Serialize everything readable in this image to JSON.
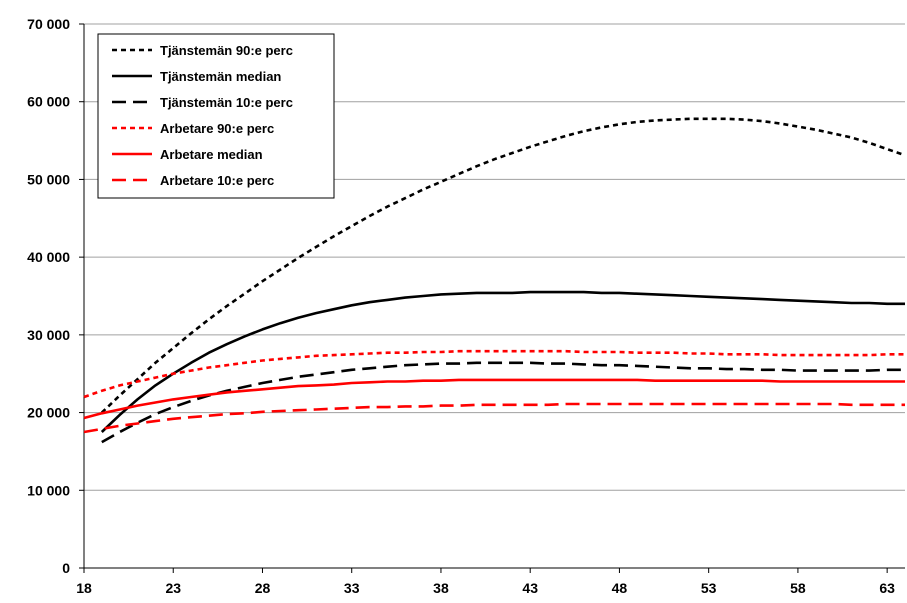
{
  "chart_data": {
    "type": "line",
    "x": [
      18,
      19,
      20,
      21,
      22,
      23,
      24,
      25,
      26,
      27,
      28,
      29,
      30,
      31,
      32,
      33,
      34,
      35,
      36,
      37,
      38,
      39,
      40,
      41,
      42,
      43,
      44,
      45,
      46,
      47,
      48,
      49,
      50,
      51,
      52,
      53,
      54,
      55,
      56,
      57,
      58,
      59,
      60,
      61,
      62,
      63,
      64
    ],
    "xticks": [
      18,
      23,
      28,
      33,
      38,
      43,
      48,
      53,
      58,
      63
    ],
    "xlim": [
      18,
      64
    ],
    "yticks": [
      0,
      10000,
      20000,
      30000,
      40000,
      50000,
      60000,
      70000
    ],
    "ytick_labels": [
      "0",
      "10 000",
      "20 000",
      "30 000",
      "40 000",
      "50 000",
      "60 000",
      "70 000"
    ],
    "ylim": [
      0,
      70000
    ],
    "grid": "horizontal",
    "legend_position": "top-left",
    "series": [
      {
        "name": "Tjänstemän 90:e perc",
        "color": "#000000",
        "dash": "short",
        "values": [
          null,
          20000,
          22200,
          24300,
          26400,
          28300,
          30200,
          32000,
          33700,
          35300,
          36900,
          38400,
          39900,
          41300,
          42700,
          44000,
          45300,
          46500,
          47600,
          48700,
          49700,
          50700,
          51700,
          52600,
          53400,
          54200,
          54900,
          55600,
          56200,
          56700,
          57100,
          57400,
          57600,
          57700,
          57800,
          57800,
          57800,
          57700,
          57500,
          57200,
          56800,
          56400,
          55900,
          55400,
          54700,
          53900,
          53100
        ]
      },
      {
        "name": "Tjänstemän median",
        "color": "#000000",
        "dash": "solid",
        "values": [
          null,
          17500,
          19700,
          21700,
          23500,
          25000,
          26400,
          27700,
          28800,
          29800,
          30700,
          31500,
          32200,
          32800,
          33300,
          33800,
          34200,
          34500,
          34800,
          35000,
          35200,
          35300,
          35400,
          35400,
          35400,
          35500,
          35500,
          35500,
          35500,
          35400,
          35400,
          35300,
          35200,
          35100,
          35000,
          34900,
          34800,
          34700,
          34600,
          34500,
          34400,
          34300,
          34200,
          34100,
          34100,
          34000,
          34000
        ]
      },
      {
        "name": "Tjänstemän 10:e perc",
        "color": "#000000",
        "dash": "long",
        "values": [
          null,
          16200,
          17500,
          18700,
          19800,
          20700,
          21500,
          22200,
          22800,
          23300,
          23800,
          24200,
          24600,
          24900,
          25200,
          25500,
          25700,
          25900,
          26100,
          26200,
          26300,
          26300,
          26400,
          26400,
          26400,
          26400,
          26300,
          26300,
          26200,
          26100,
          26100,
          26000,
          25900,
          25800,
          25700,
          25700,
          25600,
          25600,
          25500,
          25500,
          25400,
          25400,
          25400,
          25400,
          25400,
          25500,
          25500
        ]
      },
      {
        "name": "Arbetare 90:e perc",
        "color": "#ff0000",
        "dash": "short",
        "values": [
          22000,
          22800,
          23500,
          24000,
          24500,
          25000,
          25400,
          25800,
          26100,
          26400,
          26700,
          26900,
          27100,
          27300,
          27400,
          27500,
          27600,
          27700,
          27700,
          27800,
          27800,
          27900,
          27900,
          27900,
          27900,
          27900,
          27900,
          27900,
          27800,
          27800,
          27800,
          27700,
          27700,
          27700,
          27600,
          27600,
          27500,
          27500,
          27500,
          27400,
          27400,
          27400,
          27400,
          27400,
          27400,
          27500,
          27500
        ]
      },
      {
        "name": "Arbetare median",
        "color": "#ff0000",
        "dash": "solid",
        "values": [
          19300,
          19900,
          20400,
          20900,
          21300,
          21700,
          22000,
          22300,
          22600,
          22800,
          23000,
          23200,
          23400,
          23500,
          23600,
          23800,
          23900,
          24000,
          24000,
          24100,
          24100,
          24200,
          24200,
          24200,
          24200,
          24200,
          24200,
          24200,
          24200,
          24200,
          24200,
          24200,
          24100,
          24100,
          24100,
          24100,
          24100,
          24100,
          24100,
          24000,
          24000,
          24000,
          24000,
          24000,
          24000,
          24000,
          24000
        ]
      },
      {
        "name": "Arbetare 10:e perc",
        "color": "#ff0000",
        "dash": "long",
        "values": [
          17500,
          17900,
          18300,
          18600,
          18900,
          19200,
          19400,
          19600,
          19800,
          19900,
          20100,
          20200,
          20300,
          20400,
          20500,
          20600,
          20700,
          20700,
          20800,
          20800,
          20900,
          20900,
          21000,
          21000,
          21000,
          21000,
          21000,
          21100,
          21100,
          21100,
          21100,
          21100,
          21100,
          21100,
          21100,
          21100,
          21100,
          21100,
          21100,
          21100,
          21100,
          21100,
          21100,
          21000,
          21000,
          21000,
          21000
        ]
      }
    ]
  }
}
